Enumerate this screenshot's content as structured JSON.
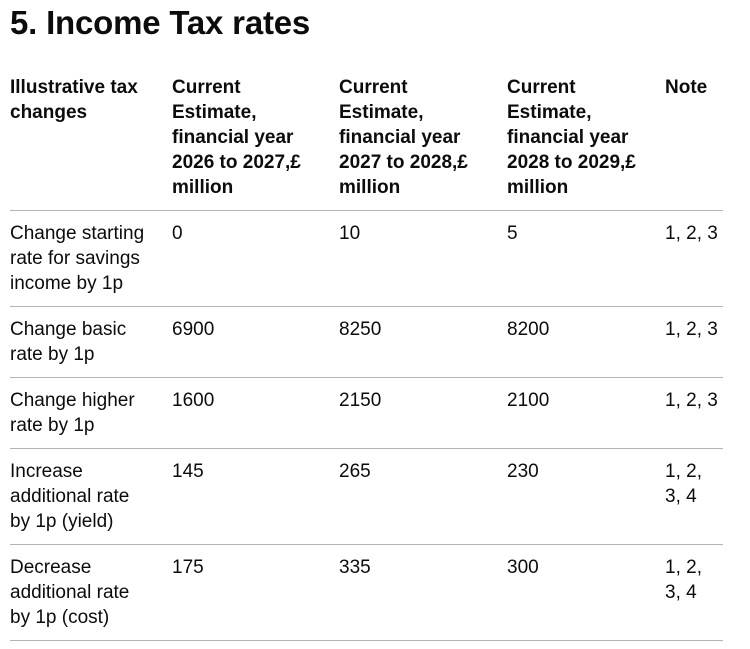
{
  "heading": "5. Income Tax rates",
  "table": {
    "columns": [
      "Illustrative tax changes",
      "Current Estimate, financial year 2026 to 2027,£ million",
      "Current Estimate, financial year 2027 to 2028,£ million",
      "Current Estimate, financial year 2028 to 2029,£ million",
      "Note"
    ],
    "rows": [
      {
        "label": "Change starting rate for savings income by 1p",
        "values": [
          "0",
          "10",
          "5"
        ],
        "note": "1, 2, 3"
      },
      {
        "label": "Change basic rate by 1p",
        "values": [
          "6900",
          "8250",
          "8200"
        ],
        "note": "1, 2, 3"
      },
      {
        "label": "Change higher rate by 1p",
        "values": [
          "1600",
          "2150",
          "2100"
        ],
        "note": "1, 2, 3"
      },
      {
        "label": "Increase additional rate by 1p (yield)",
        "values": [
          "145",
          "265",
          "230"
        ],
        "note": "1, 2, 3, 4"
      },
      {
        "label": "Decrease additional rate by 1p (cost)",
        "values": [
          "175",
          "335",
          "300"
        ],
        "note": "1, 2, 3, 4"
      }
    ]
  },
  "colors": {
    "text": "#0b0c0c",
    "border": "#b1b4b6",
    "background": "#ffffff"
  }
}
